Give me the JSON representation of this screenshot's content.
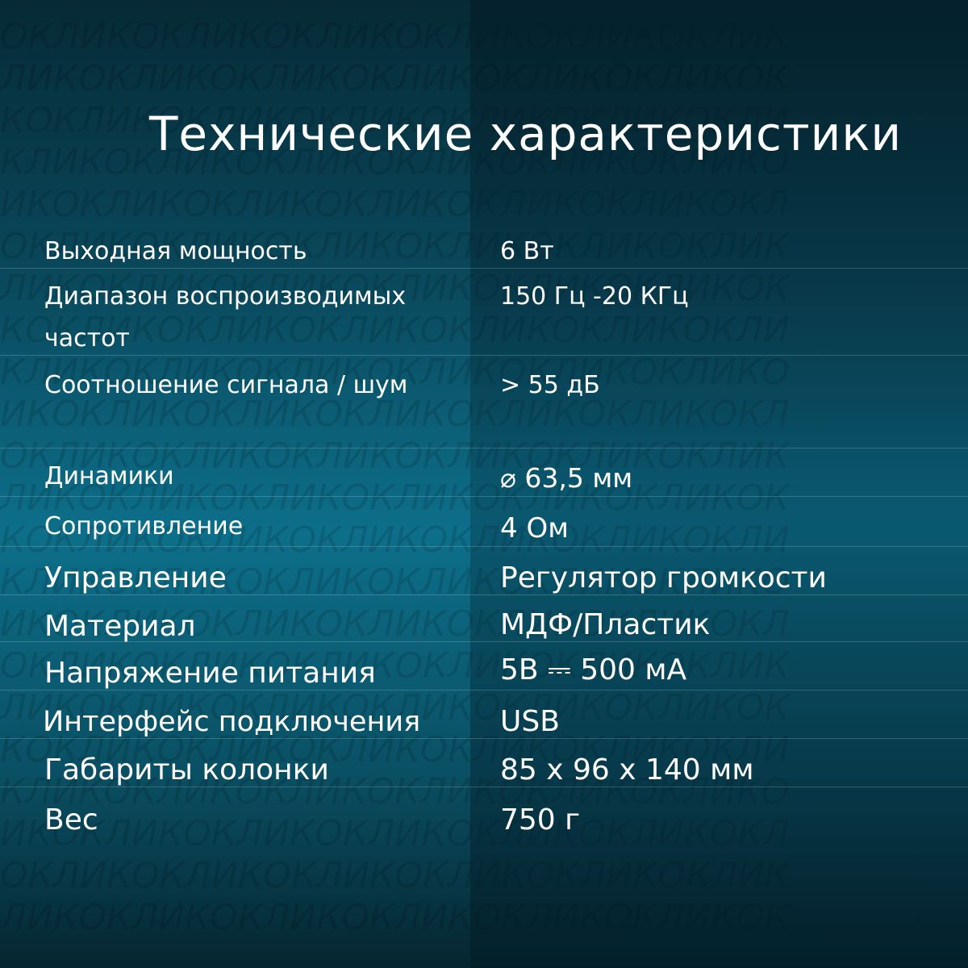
{
  "watermark_text": "ОКЛИК",
  "title": "Технические характеристики",
  "specs": [
    {
      "label": "Выходная мощность",
      "value": "6 Вт"
    },
    {
      "label": "Диапазон воспроизводимых частот",
      "value": "150 Гц -20 КГц"
    },
    {
      "label": "Соотношение сигнала / шум",
      "value": "> 55 дБ"
    },
    {
      "label": "Динамики",
      "value": "⌀ 63,5 мм"
    },
    {
      "label": "Сопротивление",
      "value": "4 Ом"
    },
    {
      "label": "Управление",
      "value": "Регулятор громкости"
    },
    {
      "label": "Материал",
      "value": "МДФ/Пластик"
    },
    {
      "label": "Напряжение питания",
      "value": "5В ⎓ 500 мА"
    },
    {
      "label": "Интерфейс подключения",
      "value": "USB"
    },
    {
      "label": "Габариты колонки",
      "value": "85 x 96 x 140 мм"
    },
    {
      "label": "Вес",
      "value": "750 г"
    }
  ]
}
